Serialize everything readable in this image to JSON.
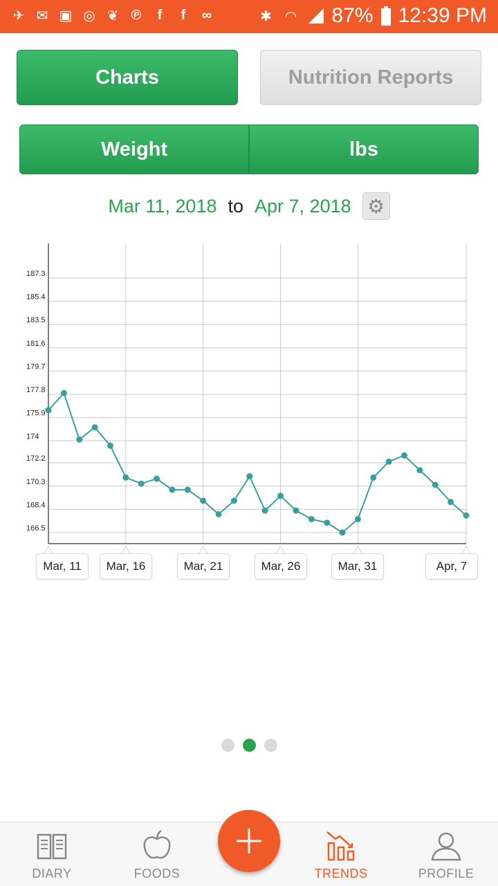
{
  "status_bar": {
    "battery": "87%",
    "time": "12:39 PM",
    "left_icons": [
      "notification-icon",
      "gmail-icon",
      "image-icon",
      "sync-icon",
      "twitter-icon",
      "pinterest-icon",
      "facebook-icon",
      "facebook-icon",
      "voicemail-icon"
    ],
    "right_icons": [
      "bluetooth-icon",
      "wifi-icon",
      "signal-icon",
      "battery-icon"
    ]
  },
  "tabs": {
    "charts": "Charts",
    "nutrition_reports": "Nutrition Reports"
  },
  "selector": {
    "metric": "Weight",
    "unit": "lbs"
  },
  "date_range": {
    "start": "Mar 11, 2018",
    "separator": "to",
    "end": "Apr 7, 2018",
    "settings_icon": "gear-icon"
  },
  "chart_data": {
    "type": "line",
    "title": "",
    "xlabel": "",
    "ylabel": "",
    "y_ticks": [
      "187.3",
      "185.4",
      "183.5",
      "181.6",
      "179.7",
      "177.8",
      "175.9",
      "174",
      "172.2",
      "170.3",
      "168.4",
      "166.5"
    ],
    "ylim": [
      165.5,
      188.3
    ],
    "x_ticks": [
      "Mar, 11",
      "Mar, 16",
      "Mar, 21",
      "Mar, 26",
      "Mar, 31",
      "Apr, 7"
    ],
    "grid": true,
    "series": [
      {
        "color": "#3a9ea0",
        "x": [
          "2018-03-11",
          "2018-03-12",
          "2018-03-13",
          "2018-03-14",
          "2018-03-15",
          "2018-03-16",
          "2018-03-17",
          "2018-03-18",
          "2018-03-19",
          "2018-03-20",
          "2018-03-21",
          "2018-03-22",
          "2018-03-23",
          "2018-03-24",
          "2018-03-25",
          "2018-03-26",
          "2018-03-27",
          "2018-03-28",
          "2018-03-29",
          "2018-03-30",
          "2018-03-31",
          "2018-04-01",
          "2018-04-02",
          "2018-04-03",
          "2018-04-04",
          "2018-04-05",
          "2018-04-06",
          "2018-04-07"
        ],
        "values": [
          176.5,
          177.9,
          174.1,
          175.1,
          173.6,
          171.0,
          170.5,
          170.9,
          170.0,
          170.0,
          169.1,
          168.0,
          169.1,
          171.1,
          168.3,
          169.5,
          168.3,
          167.6,
          167.3,
          166.5,
          167.6,
          171.0,
          172.3,
          172.8,
          171.6,
          170.4,
          169.0,
          167.9
        ]
      }
    ]
  },
  "pager": {
    "count": 3,
    "active": 1
  },
  "bottom_nav": {
    "diary": "DIARY",
    "foods": "FOODS",
    "trends": "TRENDS",
    "profile": "PROFILE",
    "add_icon": "plus-icon"
  },
  "colors": {
    "accent": "#f05a28",
    "green": "#2aa34f",
    "line": "#3a9ea0"
  }
}
